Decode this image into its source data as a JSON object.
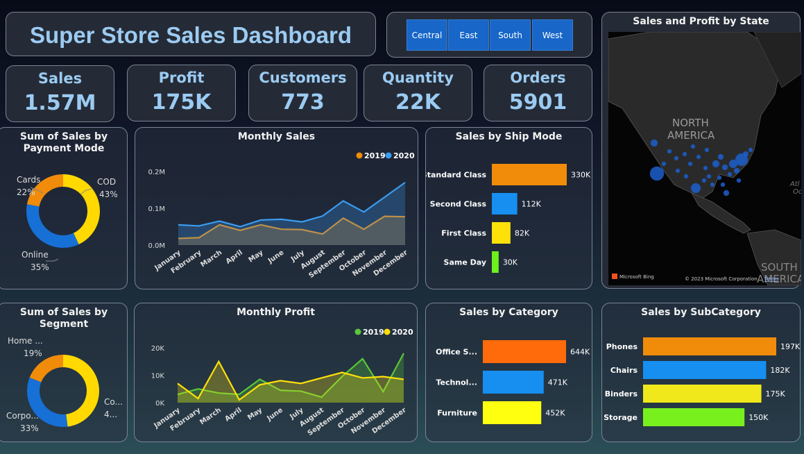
{
  "title": "Super Store Sales Dashboard",
  "slicer": [
    "Central",
    "East",
    "South",
    "West"
  ],
  "kpis": [
    {
      "label": "Sales",
      "value": "1.57M"
    },
    {
      "label": "Profit",
      "value": "175K"
    },
    {
      "label": "Customers",
      "value": "773"
    },
    {
      "label": "Quantity",
      "value": "22K"
    },
    {
      "label": "Orders",
      "value": "5901"
    }
  ],
  "map": {
    "title": "Sales and Profit by State",
    "label_na": "NORTH AMERICA",
    "label_north": "NORTH",
    "label_america": "AMERICA",
    "label_south": "SOUTH",
    "label_sa2": "AMERICA",
    "label_at": "Atl",
    "label_oc": "Oc",
    "bing": "Microsoft Bing",
    "copyright": "© 2023 Microsoft Corporation",
    "terms": "Terms"
  },
  "colors": {
    "orange": "#f08c0a",
    "blue": "#168ff0",
    "yellow": "#ffe10a",
    "green": "#6ef01e",
    "cyan": "#1a8cf5",
    "lime": "#66e83a"
  },
  "chart_data": [
    {
      "id": "payment",
      "type": "pie",
      "title": "Sum of Sales by Payment Mode",
      "title_l1": "Sum of Sales by",
      "title_l2": "Payment Mode",
      "slices": [
        {
          "name": "COD",
          "value": 43,
          "label": "43%",
          "color": "#ffd900"
        },
        {
          "name": "Online",
          "value": 35,
          "label": "35%",
          "color": "#1670d6"
        },
        {
          "name": "Cards",
          "value": 22,
          "label": "22%",
          "color": "#f08c0a"
        }
      ]
    },
    {
      "id": "segment",
      "type": "pie",
      "title": "Sum of Sales by Segment",
      "title_l1": "Sum of Sales by",
      "title_l2": "Segment",
      "slices": [
        {
          "name": "Co...",
          "value": 48,
          "label": "4...",
          "color": "#ffd900"
        },
        {
          "name": "Corpo...",
          "value": 33,
          "label": "33%",
          "color": "#1670d6"
        },
        {
          "name": "Home ...",
          "value": 19,
          "label": "19%",
          "color": "#f08c0a"
        }
      ]
    },
    {
      "id": "monthly_sales",
      "type": "area",
      "title": "Monthly Sales",
      "x": [
        "January",
        "February",
        "March",
        "April",
        "May",
        "June",
        "July",
        "August",
        "September",
        "October",
        "November",
        "December"
      ],
      "series": [
        {
          "name": "2019",
          "color": "#f08c0a",
          "values": [
            0.018,
            0.02,
            0.055,
            0.04,
            0.055,
            0.043,
            0.042,
            0.03,
            0.073,
            0.043,
            0.078,
            0.077
          ]
        },
        {
          "name": "2020",
          "color": "#3a9cf0",
          "values": [
            0.055,
            0.052,
            0.065,
            0.05,
            0.068,
            0.07,
            0.063,
            0.079,
            0.12,
            0.09,
            0.13,
            0.17
          ]
        }
      ],
      "yticks": [
        "0.0M",
        "0.1M",
        "0.2M"
      ],
      "ylim": [
        0,
        0.2
      ]
    },
    {
      "id": "monthly_profit",
      "type": "area",
      "title": "Monthly Profit",
      "x": [
        "January",
        "February",
        "March",
        "April",
        "May",
        "June",
        "July",
        "August",
        "September",
        "October",
        "November",
        "December"
      ],
      "series": [
        {
          "name": "2019",
          "color": "#59c83a",
          "values": [
            3000,
            5000,
            3500,
            3000,
            8500,
            4500,
            4200,
            2000,
            9500,
            16000,
            4000,
            18000
          ]
        },
        {
          "name": "2020",
          "color": "#ffe10a",
          "values": [
            7000,
            1500,
            15000,
            1000,
            6500,
            8000,
            7000,
            9000,
            11000,
            9000,
            9500,
            8500
          ]
        }
      ],
      "yticks": [
        "0K",
        "10K",
        "20K"
      ],
      "ylim": [
        0,
        20000
      ]
    },
    {
      "id": "ship",
      "type": "bar",
      "title": "Sales by Ship Mode",
      "categories": [
        "Standard Class",
        "Second Class",
        "First Class",
        "Same Day"
      ],
      "values": [
        330,
        112,
        82,
        30
      ],
      "labels": [
        "330K",
        "112K",
        "82K",
        "30K"
      ],
      "colors": [
        "#f08c0a",
        "#168ff0",
        "#ffe10a",
        "#6ef01e"
      ],
      "max": 330
    },
    {
      "id": "category",
      "type": "bar",
      "title": "Sales by Category",
      "categories": [
        "Office S...",
        "Technol...",
        "Furniture"
      ],
      "values": [
        644,
        471,
        452
      ],
      "labels": [
        "644K",
        "471K",
        "452K"
      ],
      "colors": [
        "#ff6a0a",
        "#168ff0",
        "#ffff10"
      ],
      "max": 644
    },
    {
      "id": "subcategory",
      "type": "bar",
      "title": "Sales by SubCategory",
      "categories": [
        "Phones",
        "Chairs",
        "Binders",
        "Storage"
      ],
      "values": [
        197,
        182,
        175,
        150
      ],
      "labels": [
        "197K",
        "182K",
        "175K",
        "150K"
      ],
      "colors": [
        "#f08c0a",
        "#168ff0",
        "#f0e81a",
        "#78f01e"
      ],
      "max": 197
    }
  ]
}
